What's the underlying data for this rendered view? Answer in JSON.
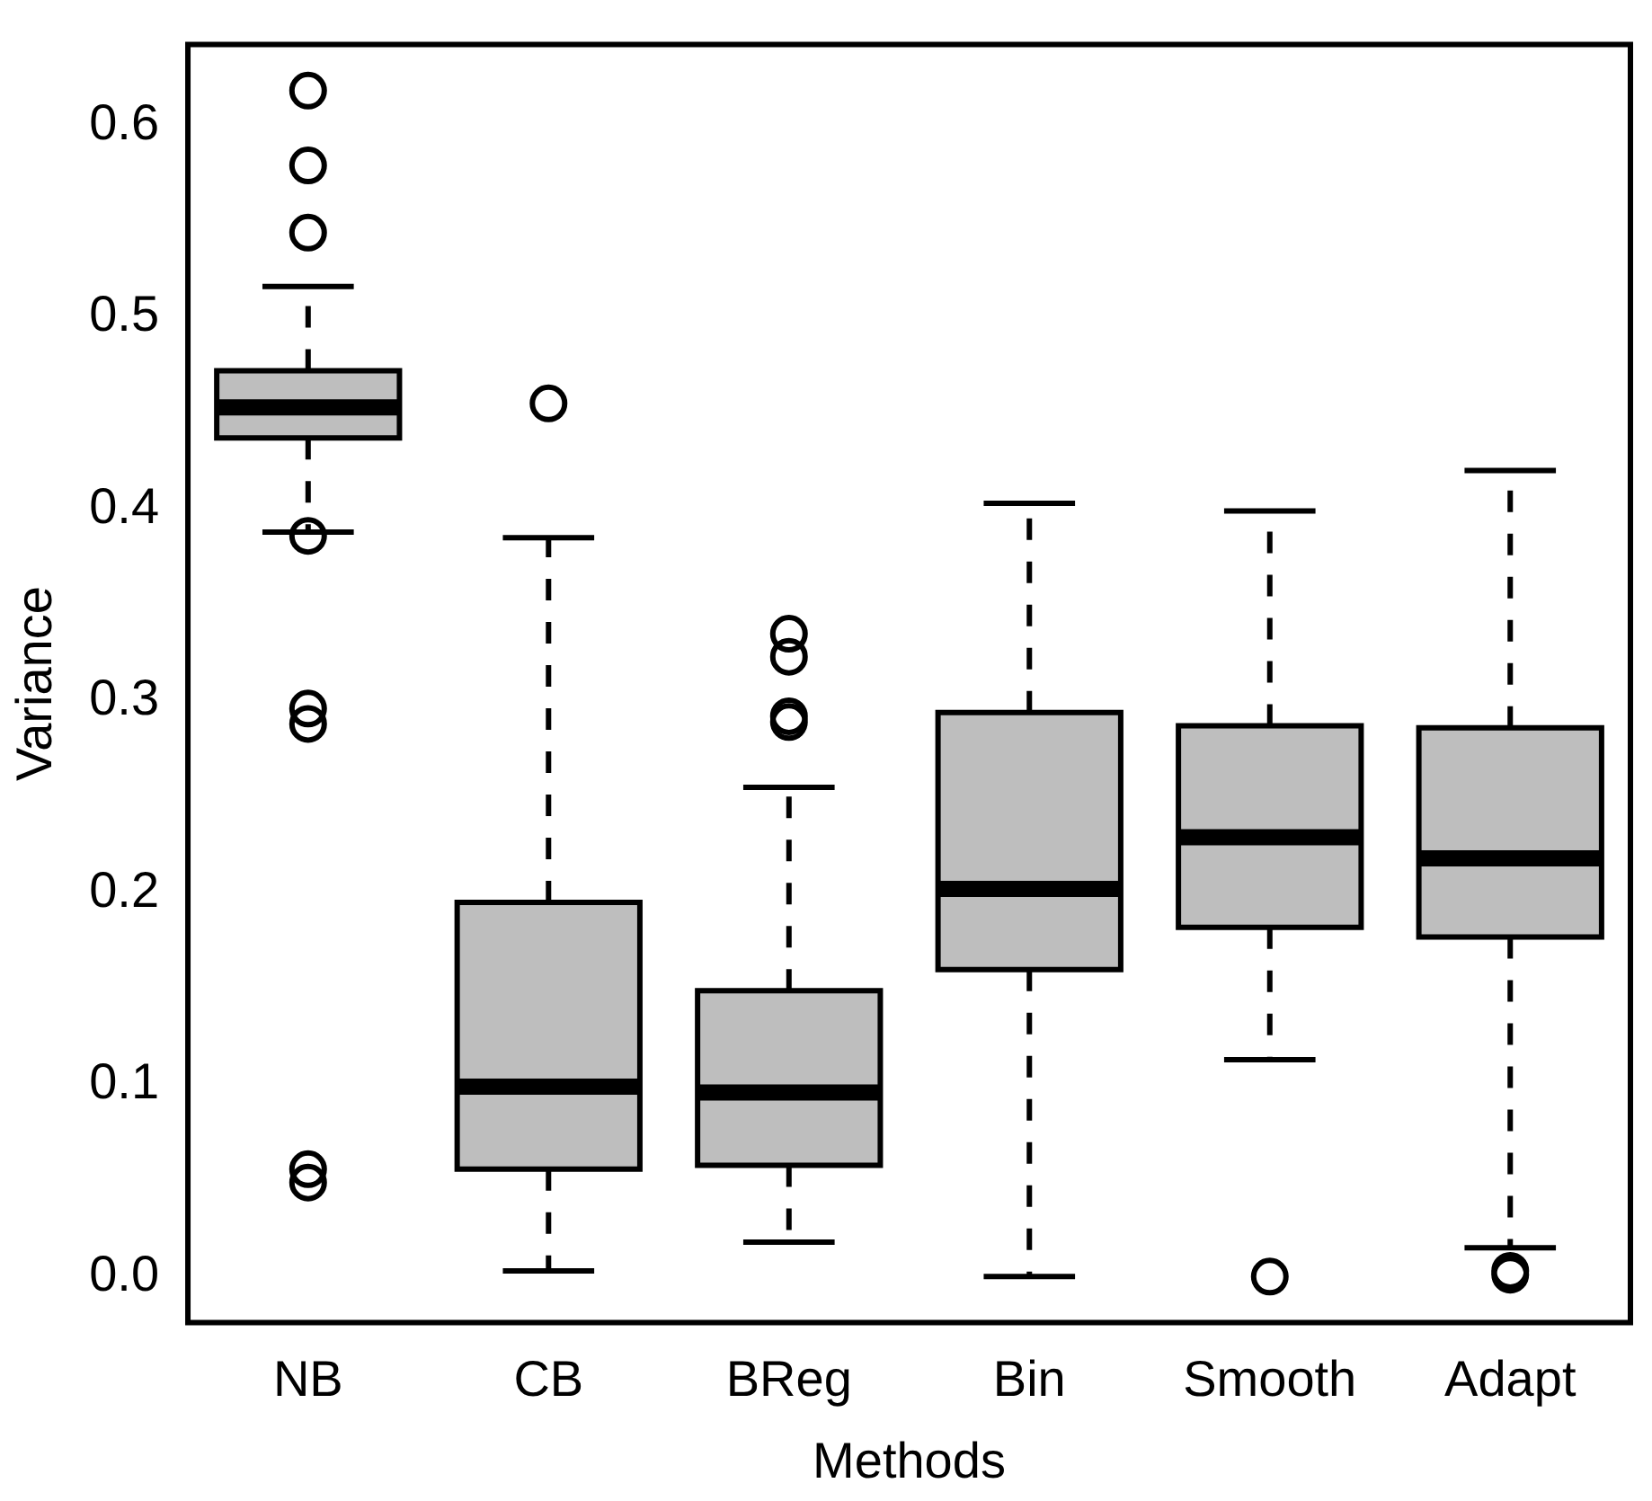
{
  "chart_data": {
    "type": "box",
    "xlabel": "Methods",
    "ylabel": "Variance",
    "categories": [
      "NB",
      "CB",
      "BReg",
      "Bin",
      "Smooth",
      "Adapt"
    ],
    "color": "#bebebe",
    "marker": "circle",
    "boxes": [
      {
        "low": 0.388,
        "q1": 0.437,
        "median": 0.453,
        "q3": 0.472,
        "high": 0.516,
        "outliers": [
          0.618,
          0.579,
          0.544,
          0.386,
          0.296,
          0.288,
          0.056,
          0.049
        ]
      },
      {
        "low": 0.003,
        "q1": 0.056,
        "median": 0.099,
        "q3": 0.195,
        "high": 0.385,
        "outliers": [
          0.455
        ]
      },
      {
        "low": 0.018,
        "q1": 0.058,
        "median": 0.096,
        "q3": 0.149,
        "high": 0.255,
        "outliers": [
          0.335,
          0.323,
          0.292,
          0.289
        ]
      },
      {
        "low": 0.0,
        "q1": 0.16,
        "median": 0.202,
        "q3": 0.294,
        "high": 0.403
      },
      {
        "low": 0.113,
        "q1": 0.182,
        "median": 0.229,
        "q3": 0.287,
        "high": 0.399,
        "outliers": [
          0.0
        ]
      },
      {
        "low": 0.015,
        "q1": 0.177,
        "median": 0.218,
        "q3": 0.286,
        "high": 0.42,
        "outliers": [
          0.003,
          0.001
        ]
      }
    ],
    "ylim": [
      -0.024,
      0.642
    ],
    "yticks": [
      {
        "value": 0,
        "label": "0.0"
      },
      0.1,
      0.2,
      0.3,
      0.4,
      0.5,
      0.6
    ]
  }
}
